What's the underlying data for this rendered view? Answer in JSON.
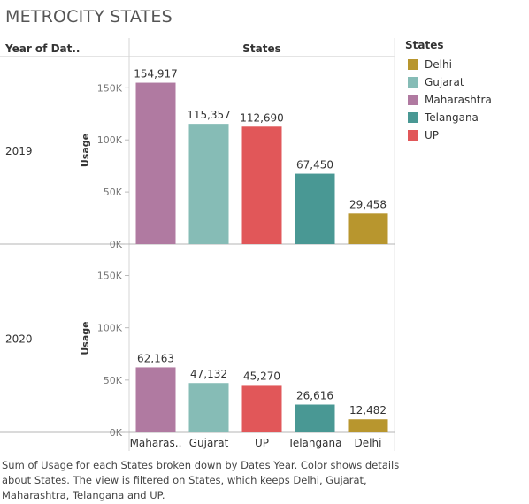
{
  "title": "METROCITY STATES",
  "caption": "Sum of Usage for each States broken down by Dates Year.  Color shows details about States. The view is filtered on States, which keeps Delhi, Gujarat, Maharashtra, Telangana and UP.",
  "legend": {
    "title": "States",
    "items": [
      {
        "label": "Delhi",
        "color": "#b8962e"
      },
      {
        "label": "Gujarat",
        "color": "#86bcb6"
      },
      {
        "label": "Maharashtra",
        "color": "#b07aa1"
      },
      {
        "label": "Telangana",
        "color": "#499894"
      },
      {
        "label": "UP",
        "color": "#e15759"
      }
    ]
  },
  "chart_data": {
    "type": "bar",
    "row_header": "Year of Dat..",
    "column_header": "States",
    "categories": [
      "Maharas..",
      "Gujarat",
      "UP",
      "Telangana",
      "Delhi"
    ],
    "colors": [
      "#b07aa1",
      "#86bcb6",
      "#e15759",
      "#499894",
      "#b8962e"
    ],
    "ylabel": "Usage",
    "ylim": [
      0,
      180000
    ],
    "yticks": [
      0,
      50000,
      100000,
      150000
    ],
    "ytick_labels": [
      "0K",
      "50K",
      "100K",
      "150K"
    ],
    "series": [
      {
        "name": "2019",
        "values": [
          154917,
          115357,
          112690,
          67450,
          29458
        ],
        "labels": [
          "154,917",
          "115,357",
          "112,690",
          "67,450",
          "29,458"
        ]
      },
      {
        "name": "2020",
        "values": [
          62163,
          47132,
          45270,
          26616,
          12482
        ],
        "labels": [
          "62,163",
          "47,132",
          "45,270",
          "26,616",
          "12,482"
        ]
      }
    ]
  }
}
